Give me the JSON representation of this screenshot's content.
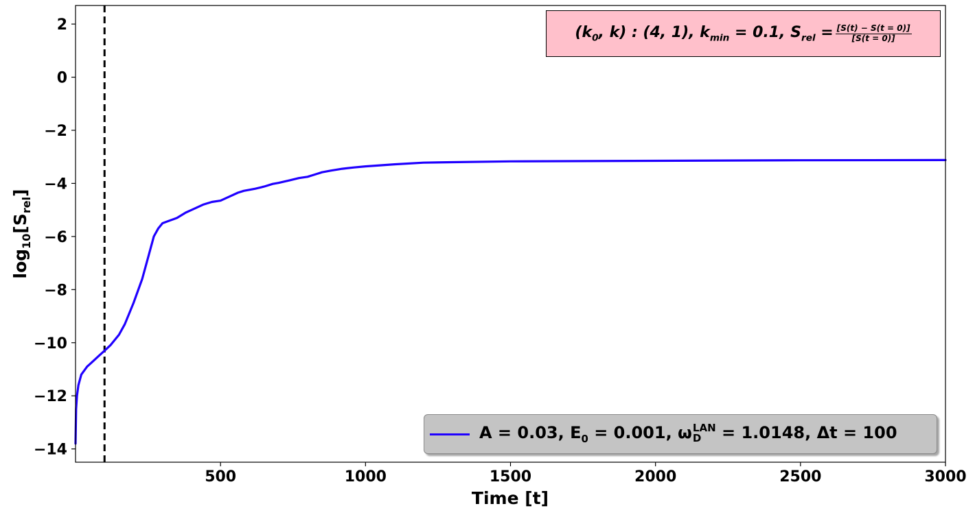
{
  "chart_data": {
    "type": "line",
    "title": "",
    "xlabel": "Time [t]",
    "ylabel": "log10[Srel]",
    "xlim": [
      0,
      3000
    ],
    "ylim": [
      -14.5,
      2.7
    ],
    "x_ticks": [
      500,
      1000,
      1500,
      2000,
      2500,
      3000
    ],
    "x_tick_labels": [
      "500",
      "1000",
      "1500",
      "2000",
      "2500",
      "3000"
    ],
    "y_ticks": [
      2,
      0,
      -2,
      -4,
      -6,
      -8,
      -10,
      -12,
      -14
    ],
    "y_tick_labels": [
      "2",
      "0",
      "−2",
      "−4",
      "−6",
      "−8",
      "−10",
      "−12",
      "−14"
    ],
    "grid": false,
    "legend_position": "bottom-right",
    "vertical_line": {
      "x": 100,
      "style": "dashed",
      "color": "#000000"
    },
    "annotation": {
      "text": "(k0, k) : (4, 1), kmin = 0.1, Srel = [S(t) − S(t = 0)] / [S(t = 0)]",
      "position": "top-right",
      "background": "#ffc0cb"
    },
    "series": [
      {
        "name": "A = 0.03, E0 = 0.001, ωD^LAN = 1.0148, Δt = 100",
        "color": "#1f00ff",
        "x": [
          0,
          2,
          5,
          10,
          20,
          40,
          60,
          80,
          100,
          120,
          150,
          170,
          200,
          230,
          250,
          270,
          285,
          300,
          320,
          350,
          380,
          400,
          440,
          470,
          500,
          530,
          560,
          580,
          620,
          650,
          680,
          700,
          740,
          770,
          800,
          830,
          850,
          880,
          920,
          960,
          1000,
          1100,
          1200,
          1300,
          1500,
          2000,
          2500,
          3000
        ],
        "y": [
          -13.8,
          -12.5,
          -12.0,
          -11.6,
          -11.2,
          -10.9,
          -10.7,
          -10.5,
          -10.3,
          -10.1,
          -9.7,
          -9.3,
          -8.5,
          -7.6,
          -6.8,
          -6.0,
          -5.7,
          -5.5,
          -5.42,
          -5.3,
          -5.1,
          -5.0,
          -4.8,
          -4.7,
          -4.65,
          -4.5,
          -4.35,
          -4.28,
          -4.2,
          -4.12,
          -4.02,
          -3.98,
          -3.88,
          -3.8,
          -3.75,
          -3.65,
          -3.58,
          -3.52,
          -3.45,
          -3.4,
          -3.36,
          -3.28,
          -3.22,
          -3.2,
          -3.17,
          -3.15,
          -3.13,
          -3.12
        ]
      }
    ]
  }
}
